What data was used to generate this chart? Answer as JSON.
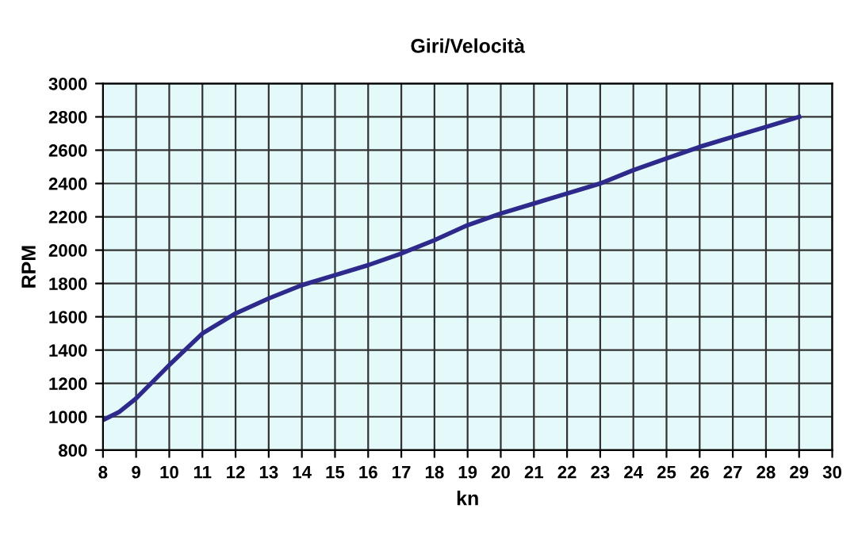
{
  "chart_data": {
    "type": "line",
    "title": "Giri/Velocità",
    "xlabel": "kn",
    "ylabel": "RPM",
    "x": [
      8,
      8.5,
      9,
      10,
      11,
      12,
      13,
      14,
      15,
      16,
      17,
      18,
      19,
      20,
      21,
      22,
      23,
      24,
      25,
      26,
      27,
      28,
      29
    ],
    "series": [
      {
        "color": "#2e2a8c",
        "values": [
          980,
          1030,
          1110,
          1310,
          1500,
          1620,
          1710,
          1790,
          1850,
          1910,
          1980,
          2060,
          2150,
          2220,
          2280,
          2340,
          2400,
          2480,
          2550,
          2620,
          2680,
          2740,
          2800
        ]
      }
    ],
    "xlim": [
      8,
      30
    ],
    "xticks": [
      8,
      9,
      10,
      11,
      12,
      13,
      14,
      15,
      16,
      17,
      18,
      19,
      20,
      21,
      22,
      23,
      24,
      25,
      26,
      27,
      28,
      29,
      30
    ],
    "ylim": [
      800,
      3000
    ],
    "yticks": [
      800,
      1000,
      1200,
      1400,
      1600,
      1800,
      2000,
      2200,
      2400,
      2600,
      2800,
      3000
    ],
    "grid": true,
    "marker": "none",
    "line_style": "solid"
  }
}
